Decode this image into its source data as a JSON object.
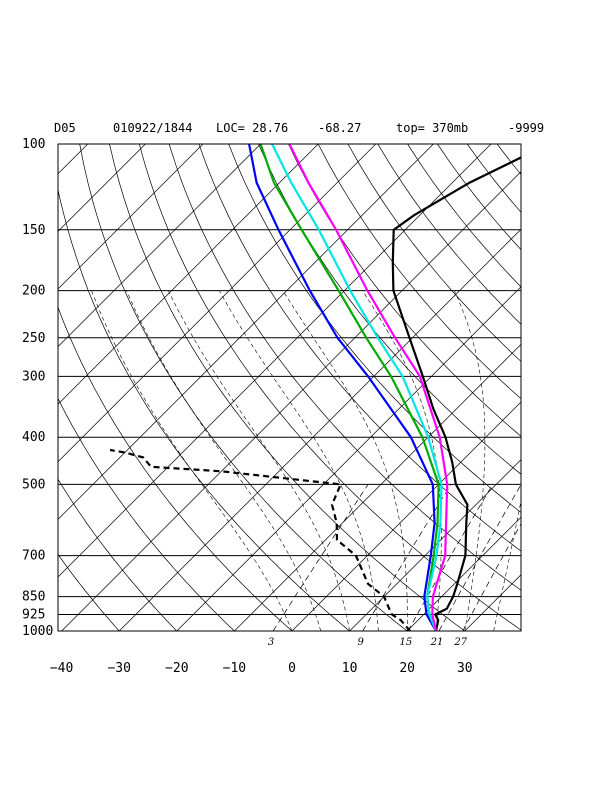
{
  "header": {
    "station": "D05",
    "datetime": "010922/1844",
    "loc": "LOC= 28.76",
    "lon": "-68.27",
    "top": "top= 370mb",
    "code": "-9999"
  },
  "chart_data": {
    "type": "line",
    "subtype": "skew-T log-P thermodynamic diagram",
    "xlabel": "",
    "ylabel": "",
    "y_scale": "log pressure (mb), inverted",
    "y_ticks": [
      100,
      150,
      200,
      250,
      300,
      400,
      500,
      700,
      850,
      925,
      1000
    ],
    "x_ticks": [
      -40,
      -30,
      -20,
      -10,
      0,
      10,
      20,
      30
    ],
    "x_tick_labels": [
      "−40",
      "−30",
      "−20",
      "−10",
      "0",
      "10",
      "20",
      "30"
    ],
    "xlim": [
      -40,
      40
    ],
    "ylim": [
      1000,
      100
    ],
    "mixing_ratio_labels": [
      "3",
      "9",
      "15",
      "21",
      "27"
    ],
    "grid": true,
    "background_lines": [
      "isobars",
      "skewed isotherms",
      "dry adiabats",
      "saturated adiabats (dashed)",
      "mixing ratio lines (dashed)"
    ],
    "series": [
      {
        "role": "temperature",
        "color": "#000000",
        "style": "solid",
        "points": [
          [
            1000,
            25
          ],
          [
            950,
            23.5
          ],
          [
            925,
            22
          ],
          [
            900,
            23
          ],
          [
            850,
            22
          ],
          [
            800,
            20.5
          ],
          [
            700,
            17
          ],
          [
            600,
            11.5
          ],
          [
            550,
            8.5
          ],
          [
            500,
            3
          ],
          [
            450,
            -1.5
          ],
          [
            400,
            -7
          ],
          [
            350,
            -14
          ],
          [
            300,
            -21.5
          ],
          [
            250,
            -30.5
          ],
          [
            200,
            -41.5
          ],
          [
            175,
            -46.5
          ],
          [
            150,
            -52
          ],
          [
            140,
            -51
          ],
          [
            120,
            -47
          ],
          [
            100,
            -40
          ]
        ]
      },
      {
        "role": "dewpoint",
        "color": "#000000",
        "style": "dashed",
        "points": [
          [
            1000,
            20.5
          ],
          [
            950,
            17
          ],
          [
            925,
            14.5
          ],
          [
            900,
            13
          ],
          [
            850,
            10
          ],
          [
            800,
            5
          ],
          [
            700,
            -2
          ],
          [
            650,
            -8
          ],
          [
            600,
            -11
          ],
          [
            550,
            -15
          ],
          [
            500,
            -17
          ],
          [
            470,
            -40
          ],
          [
            460,
            -53
          ],
          [
            440,
            -56
          ],
          [
            430,
            -60
          ],
          [
            425,
            -63
          ]
        ]
      },
      {
        "role": "profile-blue",
        "color": "#0000ff",
        "style": "solid",
        "points": [
          [
            1000,
            25
          ],
          [
            925,
            20.5
          ],
          [
            850,
            17
          ],
          [
            700,
            11
          ],
          [
            600,
            6
          ],
          [
            500,
            -1
          ],
          [
            400,
            -13
          ],
          [
            300,
            -31
          ],
          [
            250,
            -43
          ],
          [
            200,
            -56
          ],
          [
            150,
            -72
          ],
          [
            120,
            -84
          ],
          [
            100,
            -92
          ]
        ]
      },
      {
        "role": "profile-green",
        "color": "#00aa00",
        "style": "solid",
        "points": [
          [
            1000,
            25
          ],
          [
            925,
            21
          ],
          [
            850,
            17.5
          ],
          [
            700,
            11.5
          ],
          [
            600,
            6.5
          ],
          [
            500,
            0
          ],
          [
            400,
            -11
          ],
          [
            300,
            -27
          ],
          [
            250,
            -38
          ],
          [
            200,
            -51
          ],
          [
            150,
            -68
          ],
          [
            120,
            -81
          ],
          [
            100,
            -90
          ]
        ]
      },
      {
        "role": "profile-cyan",
        "color": "#00e5e5",
        "style": "solid",
        "points": [
          [
            1000,
            25
          ],
          [
            925,
            21
          ],
          [
            850,
            17.5
          ],
          [
            700,
            12
          ],
          [
            600,
            7
          ],
          [
            500,
            0.5
          ],
          [
            400,
            -10
          ],
          [
            300,
            -25
          ],
          [
            250,
            -36
          ],
          [
            200,
            -49
          ],
          [
            150,
            -65
          ],
          [
            120,
            -78
          ],
          [
            100,
            -88
          ]
        ]
      },
      {
        "role": "profile-magenta",
        "color": "#ff00ff",
        "style": "solid",
        "points": [
          [
            1000,
            25
          ],
          [
            925,
            21.5
          ],
          [
            850,
            18.5
          ],
          [
            700,
            13.5
          ],
          [
            600,
            8
          ],
          [
            500,
            1.5
          ],
          [
            400,
            -8
          ],
          [
            300,
            -22
          ],
          [
            250,
            -33
          ],
          [
            200,
            -46
          ],
          [
            150,
            -62
          ],
          [
            120,
            -75
          ],
          [
            100,
            -85
          ]
        ]
      }
    ]
  }
}
